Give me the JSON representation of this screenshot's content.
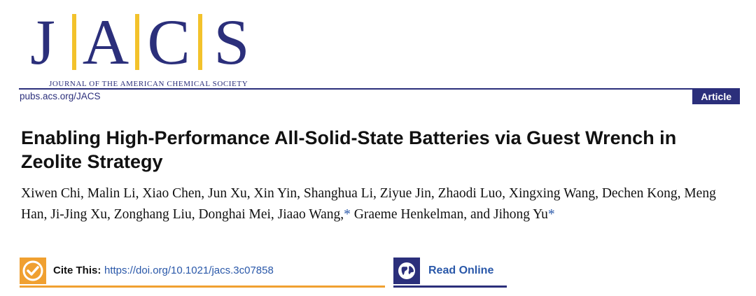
{
  "logo": {
    "letters": [
      "J",
      "A",
      "C",
      "S"
    ],
    "subtitle": "JOURNAL OF THE AMERICAN CHEMICAL SOCIETY"
  },
  "header": {
    "pubs_link": "pubs.acs.org/JACS",
    "article_type": "Article"
  },
  "title": "Enabling High-Performance All-Solid-State Batteries via Guest Wrench in Zeolite Strategy",
  "authors": {
    "before_star1": "Xiwen Chi, Malin Li, Xiao Chen, Jun Xu, Xin Yin, Shanghua Li, Ziyue Jin, Zhaodi Luo, Xingxing Wang, Dechen Kong, Meng Han, Ji-Jing Xu, Zonghang Liu, Donghai Mei, Jiaao Wang,",
    "star1": "*",
    "between": " Graeme Henkelman, and Jihong Yu",
    "star2": "*"
  },
  "cite": {
    "label": "Cite This:",
    "doi": "https://doi.org/10.1021/jacs.3c07858",
    "icon": "check-icon"
  },
  "read": {
    "label": "Read Online",
    "icon": "globe-icon"
  },
  "colors": {
    "navy": "#2b2f7b",
    "gold": "#f3c22b",
    "orange": "#f0a030",
    "link_blue": "#2a58a9"
  }
}
